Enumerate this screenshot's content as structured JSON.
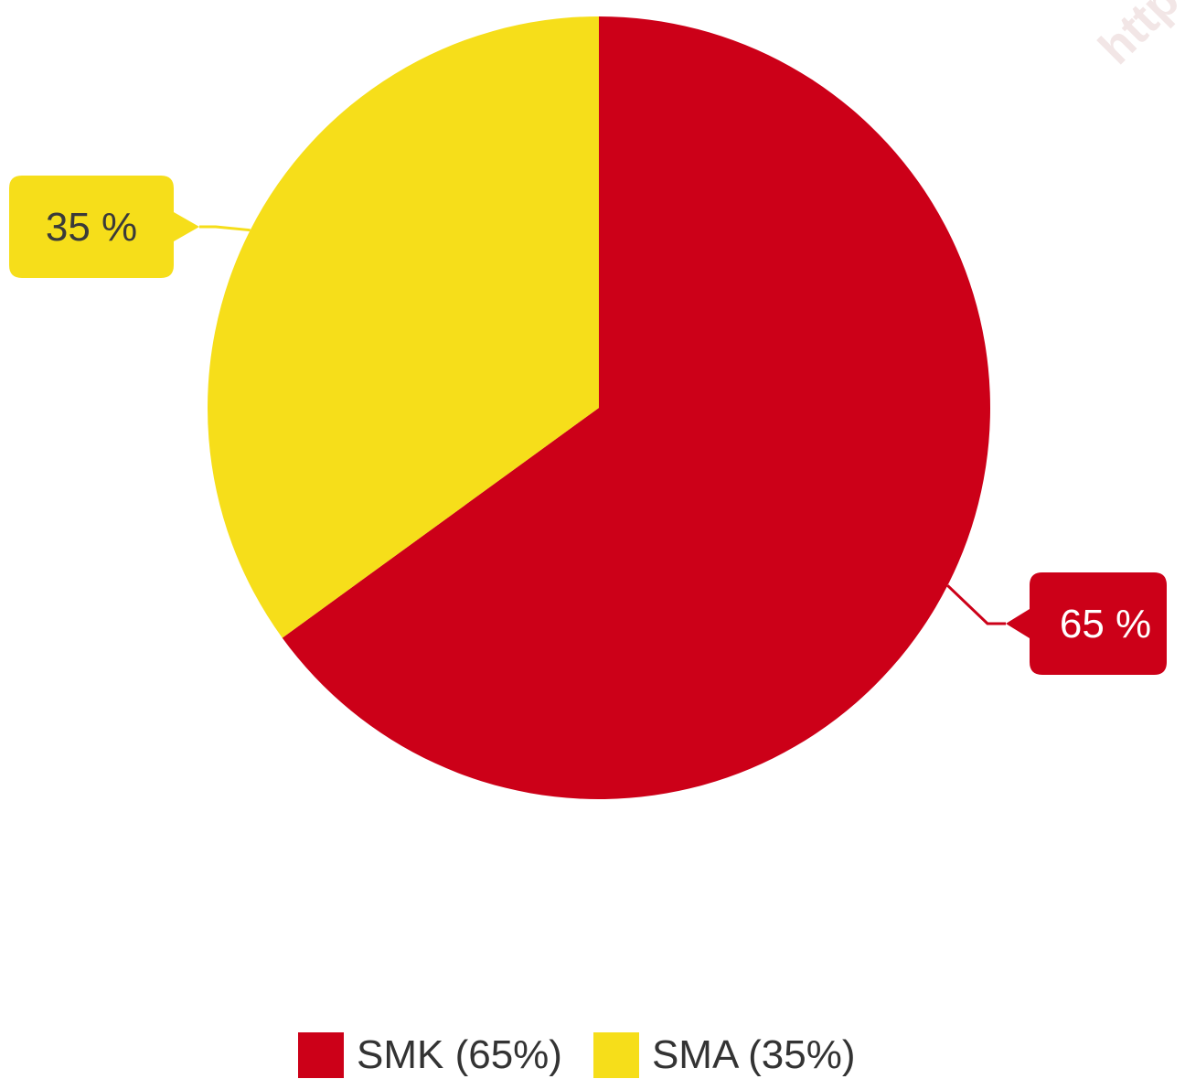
{
  "chart_data": {
    "type": "pie",
    "categories": [
      "SMK",
      "SMA"
    ],
    "values": [
      65,
      35
    ],
    "colors": [
      "#cc0018",
      "#f6de1a"
    ],
    "data_labels": [
      "65 %",
      "35 %"
    ],
    "legend_entries": [
      "SMK (65%)",
      "SMA (35%)"
    ],
    "legend_position": "bottom-center",
    "start_angle": "12 o'clock",
    "direction": "clockwise"
  },
  "watermark": "http:/"
}
